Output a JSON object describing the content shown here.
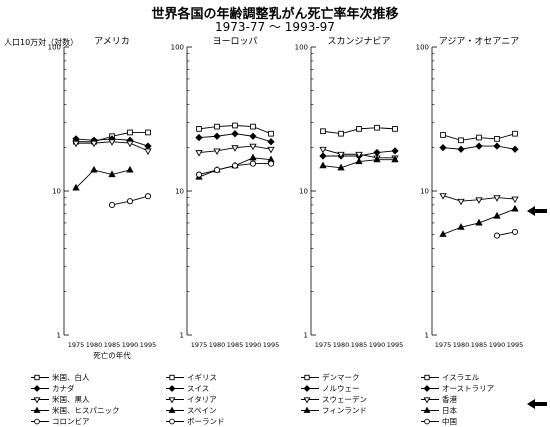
{
  "title": "世界各国の年齢調整乳がん死亡率年次推移",
  "subtitle": "1973-77 〜 1993-97",
  "ylabel": "人口10万対（対数）",
  "colors": {
    "line": "#000000",
    "open_fill": "#ffffff",
    "solid_fill": "#000000"
  },
  "chart_data": [
    {
      "type": "line",
      "panel": "アメリカ",
      "title": "アメリカ",
      "xlabel": "死亡の年代",
      "x": [
        "1975",
        "1980",
        "1985",
        "1990",
        "1995"
      ],
      "ylim": [
        1,
        100
      ],
      "yscale": "log",
      "yticks": [
        "1",
        "10",
        "100"
      ],
      "series": [
        {
          "name": "米国、白人",
          "marker": "square-open",
          "values": [
            22,
            22,
            24,
            25.5,
            25.5
          ]
        },
        {
          "name": "カナダ",
          "marker": "diamond-filled",
          "values": [
            23,
            22.5,
            23,
            22.5,
            20.5
          ]
        },
        {
          "name": "米国、黒人",
          "marker": "triangle-down-open",
          "values": [
            21.5,
            21.5,
            22,
            21.5,
            19
          ]
        },
        {
          "name": "米国、ヒスパニック",
          "marker": "triangle-filled",
          "values": [
            10.5,
            14,
            13,
            14,
            null
          ]
        },
        {
          "name": "コロンビア",
          "marker": "circle-open",
          "values": [
            null,
            null,
            8,
            8.5,
            9.2
          ]
        }
      ]
    },
    {
      "type": "line",
      "panel": "ヨーロッパ",
      "title": "ヨーロッパ",
      "xlabel": "",
      "x": [
        "1975",
        "1980",
        "1985",
        "1990",
        "1995"
      ],
      "ylim": [
        1,
        100
      ],
      "yscale": "log",
      "yticks": [
        "1",
        "10",
        "100"
      ],
      "series": [
        {
          "name": "イギリス",
          "marker": "square-open",
          "values": [
            27,
            28,
            28.5,
            28,
            25
          ]
        },
        {
          "name": "スイス",
          "marker": "diamond-filled",
          "values": [
            23.5,
            24,
            25,
            24,
            22
          ]
        },
        {
          "name": "イタリア",
          "marker": "triangle-down-open",
          "values": [
            18.5,
            19,
            20,
            20.5,
            19.5
          ]
        },
        {
          "name": "スペイン",
          "marker": "triangle-filled",
          "values": [
            12.5,
            14,
            15,
            17,
            16.5
          ]
        },
        {
          "name": "ポーランド",
          "marker": "circle-open",
          "values": [
            13,
            14,
            15,
            15.5,
            15.5
          ]
        }
      ]
    },
    {
      "type": "line",
      "panel": "スカンジナビア",
      "title": "スカンジナビア",
      "xlabel": "",
      "x": [
        "1975",
        "1980",
        "1985",
        "1990",
        "1995"
      ],
      "ylim": [
        1,
        100
      ],
      "yscale": "log",
      "yticks": [
        "1",
        "10",
        "100"
      ],
      "series": [
        {
          "name": "デンマーク",
          "marker": "square-open",
          "values": [
            26,
            25,
            27,
            27.5,
            27
          ]
        },
        {
          "name": "ノルウェー",
          "marker": "diamond-filled",
          "values": [
            17.5,
            17.5,
            17.5,
            18.5,
            19
          ]
        },
        {
          "name": "スウェーデン",
          "marker": "triangle-down-open",
          "values": [
            19.5,
            18,
            18,
            17,
            17
          ]
        },
        {
          "name": "フィンランド",
          "marker": "triangle-filled",
          "values": [
            15,
            14.5,
            16,
            16.5,
            16.5
          ]
        }
      ]
    },
    {
      "type": "line",
      "panel": "アジア・オセアニア",
      "title": "アジア・オセアニア",
      "xlabel": "",
      "x": [
        "1975",
        "1980",
        "1985",
        "1990",
        "1995"
      ],
      "ylim": [
        1,
        100
      ],
      "yscale": "log",
      "yticks": [
        "1",
        "10",
        "100"
      ],
      "series": [
        {
          "name": "イスラエル",
          "marker": "square-open",
          "values": [
            24.5,
            22.5,
            23.5,
            23,
            25
          ]
        },
        {
          "name": "オーストラリア",
          "marker": "diamond-filled",
          "values": [
            20,
            19.5,
            20.5,
            20.5,
            19.5
          ]
        },
        {
          "name": "香港",
          "marker": "triangle-down-open",
          "values": [
            9.3,
            8.5,
            8.7,
            9,
            8.8
          ]
        },
        {
          "name": "日本",
          "marker": "triangle-filled",
          "values": [
            5,
            5.6,
            6,
            6.7,
            7.5
          ]
        },
        {
          "name": "中国",
          "marker": "circle-open",
          "values": [
            null,
            null,
            null,
            4.9,
            5.2
          ]
        }
      ]
    }
  ]
}
